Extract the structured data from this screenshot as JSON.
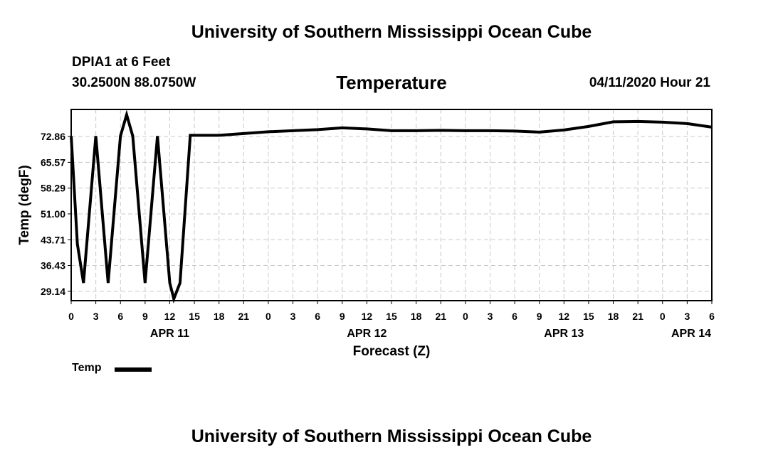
{
  "header": {
    "title_top": "University of Southern Mississippi Ocean Cube",
    "title_bottom": "University of Southern Mississippi Ocean Cube",
    "station": "DPIA1 at 6 Feet",
    "coords": "30.2500N 88.0750W",
    "variable": "Temperature",
    "datetime": "04/11/2020 Hour 21"
  },
  "legend": {
    "label": "Temp"
  },
  "chart_data": {
    "type": "line",
    "title": "Temperature",
    "xlabel": "Forecast (Z)",
    "ylabel": "Temp (degF)",
    "ylim": [
      26.5,
      80.5
    ],
    "yticks": [
      29.14,
      36.43,
      43.71,
      51.0,
      58.29,
      65.57,
      72.86
    ],
    "ytick_labels": [
      "29.14",
      "36.43",
      "43.71",
      "51.00",
      "58.29",
      "65.57",
      "72.86"
    ],
    "xlim": [
      0,
      78
    ],
    "xticks": [
      0,
      3,
      6,
      9,
      12,
      15,
      18,
      21,
      24,
      27,
      30,
      33,
      36,
      39,
      42,
      45,
      48,
      51,
      54,
      57,
      60,
      63,
      66,
      69,
      72,
      75,
      78
    ],
    "xtick_labels": [
      "0",
      "3",
      "6",
      "9",
      "12",
      "15",
      "18",
      "21",
      "0",
      "3",
      "6",
      "9",
      "12",
      "15",
      "18",
      "21",
      "0",
      "3",
      "6",
      "9",
      "12",
      "15",
      "18",
      "21",
      "0",
      "3",
      "6"
    ],
    "date_labels": [
      {
        "label": "APR 11",
        "x": 12
      },
      {
        "label": "APR 12",
        "x": 36
      },
      {
        "label": "APR 13",
        "x": 60
      },
      {
        "label": "APR 14",
        "x": 78
      }
    ],
    "grid": true,
    "series": [
      {
        "name": "Temp",
        "color": "#000000",
        "x": [
          0,
          0.75,
          1.5,
          3,
          4.5,
          6,
          6.75,
          7.5,
          9,
          10.5,
          12,
          12.5,
          13.25,
          14.5,
          18,
          24,
          27,
          30,
          33,
          36,
          39,
          42,
          45,
          48,
          51,
          54,
          57,
          60,
          63,
          66,
          69,
          72,
          75,
          78
        ],
        "y": [
          73.0,
          42.5,
          31.5,
          73.0,
          31.5,
          73.0,
          79.0,
          73.0,
          31.5,
          73.0,
          31.5,
          27.0,
          31.5,
          73.2,
          73.2,
          74.2,
          74.5,
          74.8,
          75.3,
          75.0,
          74.5,
          74.5,
          74.6,
          74.5,
          74.5,
          74.4,
          74.1,
          74.7,
          75.7,
          77.0,
          77.1,
          76.9,
          76.5,
          75.5
        ]
      }
    ]
  }
}
